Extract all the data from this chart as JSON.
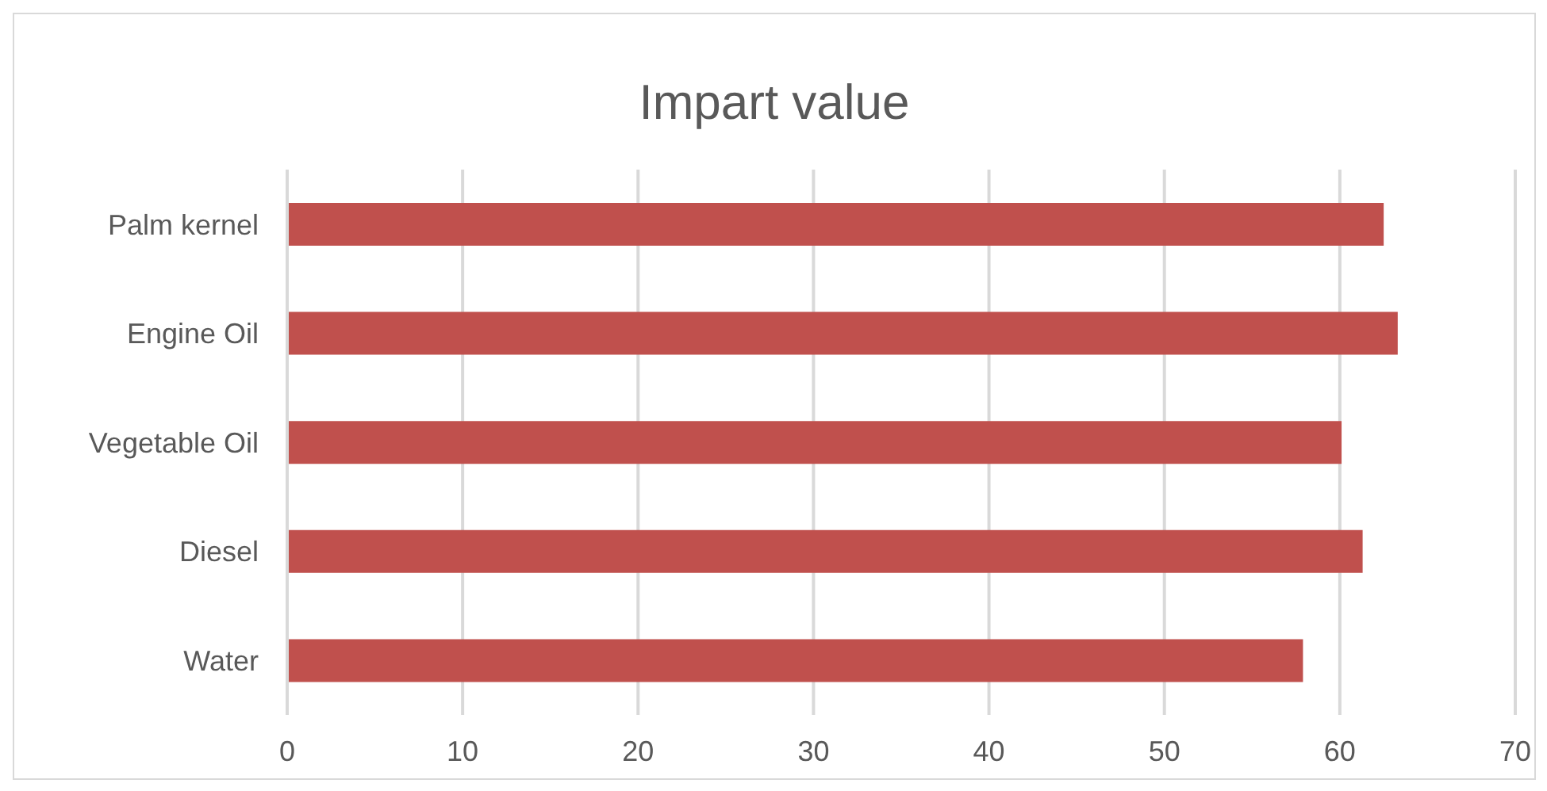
{
  "chart_data": {
    "type": "bar",
    "orientation": "horizontal",
    "title": "Impart value",
    "categories": [
      "Palm kernel",
      "Engine Oil",
      "Vegetable Oil",
      "Diesel",
      "Water"
    ],
    "values": [
      62.5,
      63.3,
      60.1,
      61.3,
      57.9
    ],
    "color": "#c0504d",
    "xlim": [
      0,
      70
    ],
    "xticks": [
      0,
      10,
      20,
      30,
      40,
      50,
      60,
      70
    ],
    "grid": "x"
  }
}
